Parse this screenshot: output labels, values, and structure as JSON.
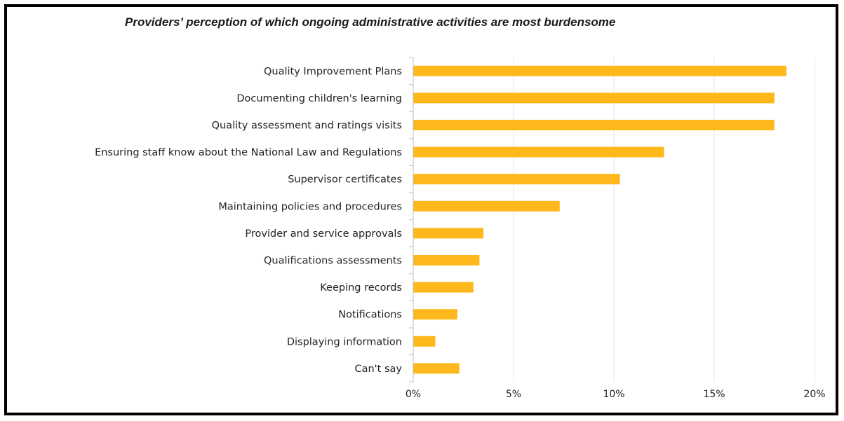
{
  "chart_data": {
    "type": "bar",
    "orientation": "horizontal",
    "title": "Providers’ perception of which ongoing administrative activities are most burdensome",
    "xlabel": "",
    "ylabel": "",
    "categories": [
      "Quality Improvement Plans",
      "Documenting children's learning",
      "Quality assessment and ratings visits",
      "Ensuring staff know about the National Law and Regulations",
      "Supervisor certificates",
      "Maintaining policies and procedures",
      "Provider and service approvals",
      "Qualifications assessments",
      "Keeping records",
      "Notifications",
      "Displaying information",
      "Can't say"
    ],
    "values": [
      18.6,
      18.0,
      18.0,
      12.5,
      10.3,
      7.3,
      3.5,
      3.3,
      3.0,
      2.2,
      1.1,
      2.3
    ],
    "xlim": [
      0,
      20
    ],
    "ticks": [
      0,
      5,
      10,
      15,
      20
    ],
    "tick_labels": [
      "0%",
      "5%",
      "10%",
      "15%",
      "20%"
    ],
    "grid": "vertical",
    "legend": "none",
    "bar_color": "#FFB81C",
    "grid_color": "#e6e6e6",
    "axis_color": "#bfbfbf"
  }
}
